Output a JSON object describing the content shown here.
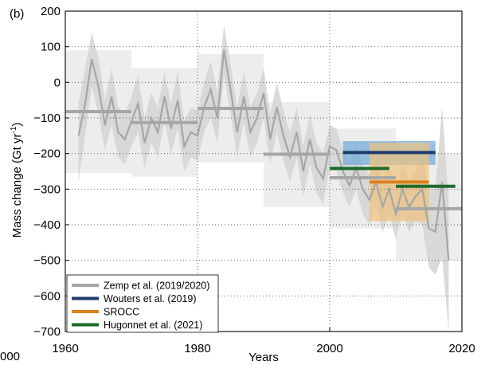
{
  "panel_label": "(b)",
  "left_edge_tick": "000",
  "chart_data": {
    "type": "line",
    "title": "",
    "xlabel": "Years",
    "ylabel": "Mass change (Gt yr",
    "ylabel_sup": "-1",
    "ylabel_close": ")",
    "xlim": [
      1960,
      2020
    ],
    "ylim": [
      -700,
      200
    ],
    "xticks": [
      1960,
      1980,
      2000,
      2020
    ],
    "yticks": [
      200,
      100,
      0,
      -100,
      -200,
      -300,
      -400,
      -500,
      -600,
      -700
    ],
    "grid": "dotted",
    "legend_position": "bottom-left",
    "annual_series": {
      "name": "Zemp et al. (2019/2020)",
      "x": [
        1962,
        1963,
        1964,
        1965,
        1966,
        1967,
        1968,
        1969,
        1970,
        1971,
        1972,
        1973,
        1974,
        1975,
        1976,
        1977,
        1978,
        1979,
        1980,
        1981,
        1982,
        1983,
        1984,
        1985,
        1986,
        1987,
        1988,
        1989,
        1990,
        1991,
        1992,
        1993,
        1994,
        1995,
        1996,
        1997,
        1998,
        1999,
        2000,
        2001,
        2002,
        2003,
        2004,
        2005,
        2006,
        2007,
        2008,
        2009,
        2010,
        2011,
        2012,
        2013,
        2014,
        2015,
        2016,
        2017,
        2018
      ],
      "values": [
        -150,
        -60,
        65,
        -10,
        -120,
        -40,
        -140,
        -160,
        -110,
        -60,
        -170,
        -100,
        -140,
        -40,
        -130,
        -50,
        -180,
        -140,
        -150,
        -70,
        -20,
        -100,
        90,
        -20,
        -140,
        -40,
        -140,
        -100,
        -30,
        -160,
        -70,
        -150,
        -210,
        -140,
        -250,
        -160,
        -240,
        -270,
        -180,
        -190,
        -250,
        -290,
        -240,
        -300,
        -330,
        -280,
        -350,
        -300,
        -370,
        -300,
        -350,
        -320,
        -300,
        -410,
        -420,
        -280,
        -500
      ],
      "upper": [
        -60,
        40,
        140,
        70,
        -50,
        40,
        -70,
        -90,
        -40,
        20,
        -100,
        -30,
        -70,
        30,
        -60,
        30,
        -110,
        -70,
        -80,
        0,
        60,
        -30,
        160,
        50,
        -70,
        30,
        -70,
        -30,
        40,
        -90,
        0,
        -80,
        -140,
        -70,
        -180,
        -90,
        -170,
        -200,
        -120,
        -130,
        -190,
        -230,
        -180,
        -230,
        -260,
        -210,
        -280,
        -230,
        -300,
        -230,
        -280,
        -250,
        -200,
        -300,
        -300,
        -70,
        -330
      ],
      "lower": [
        -280,
        -150,
        -10,
        -90,
        -190,
        -120,
        -210,
        -230,
        -180,
        -140,
        -240,
        -170,
        -210,
        -110,
        -200,
        -130,
        -250,
        -210,
        -220,
        -140,
        -100,
        -170,
        20,
        -90,
        -210,
        -110,
        -210,
        -170,
        -100,
        -230,
        -140,
        -220,
        -280,
        -210,
        -320,
        -230,
        -310,
        -340,
        -240,
        -250,
        -310,
        -350,
        -300,
        -370,
        -400,
        -350,
        -420,
        -370,
        -440,
        -370,
        -420,
        -390,
        -400,
        -520,
        -540,
        -490,
        -700
      ],
      "color": "#a6a6a6"
    },
    "decadal_means": {
      "name": "Zemp et al. (2019/2020)",
      "segments": [
        {
          "x": [
            1960,
            1970
          ],
          "value": -82,
          "upper": 90,
          "lower": -255
        },
        {
          "x": [
            1970,
            1980
          ],
          "value": -113,
          "upper": 40,
          "lower": -265
        },
        {
          "x": [
            1980,
            1990
          ],
          "value": -73,
          "upper": 80,
          "lower": -225
        },
        {
          "x": [
            1990,
            2000
          ],
          "value": -202,
          "upper": -55,
          "lower": -350
        },
        {
          "x": [
            2000,
            2010
          ],
          "value": -268,
          "upper": -130,
          "lower": -410
        },
        {
          "x": [
            2010,
            2020
          ],
          "value": -355,
          "upper": -200,
          "lower": -500
        }
      ],
      "color": "#a6a6a6"
    },
    "estimates": [
      {
        "name": "Wouters et al. (2019)",
        "x": [
          2002,
          2016
        ],
        "value": -197,
        "upper": -165,
        "lower": -232,
        "color": "#1f3c6e",
        "band_color": "#6ea6d8"
      },
      {
        "name": "SROCC",
        "x": [
          2006,
          2015
        ],
        "value": -280,
        "upper": -170,
        "lower": -390,
        "color": "#d9821e",
        "band_color": "#f0c27a"
      },
      {
        "name": "Hugonnet et al. (2021)",
        "x": [
          2000,
          2009
        ],
        "value": -242,
        "color": "#1d6b2c"
      },
      {
        "name": "Hugonnet et al. (2021)",
        "x": [
          2010,
          2019
        ],
        "value": -292,
        "color": "#1d6b2c"
      }
    ],
    "legend": [
      {
        "label": "Zemp et al. (2019/2020)",
        "color": "#a6a6a6"
      },
      {
        "label": "Wouters et al. (2019)",
        "color": "#1f3c6e"
      },
      {
        "label": "SROCC",
        "color": "#d9821e"
      },
      {
        "label": "Hugonnet et al. (2021)",
        "color": "#1d6b2c"
      }
    ]
  }
}
